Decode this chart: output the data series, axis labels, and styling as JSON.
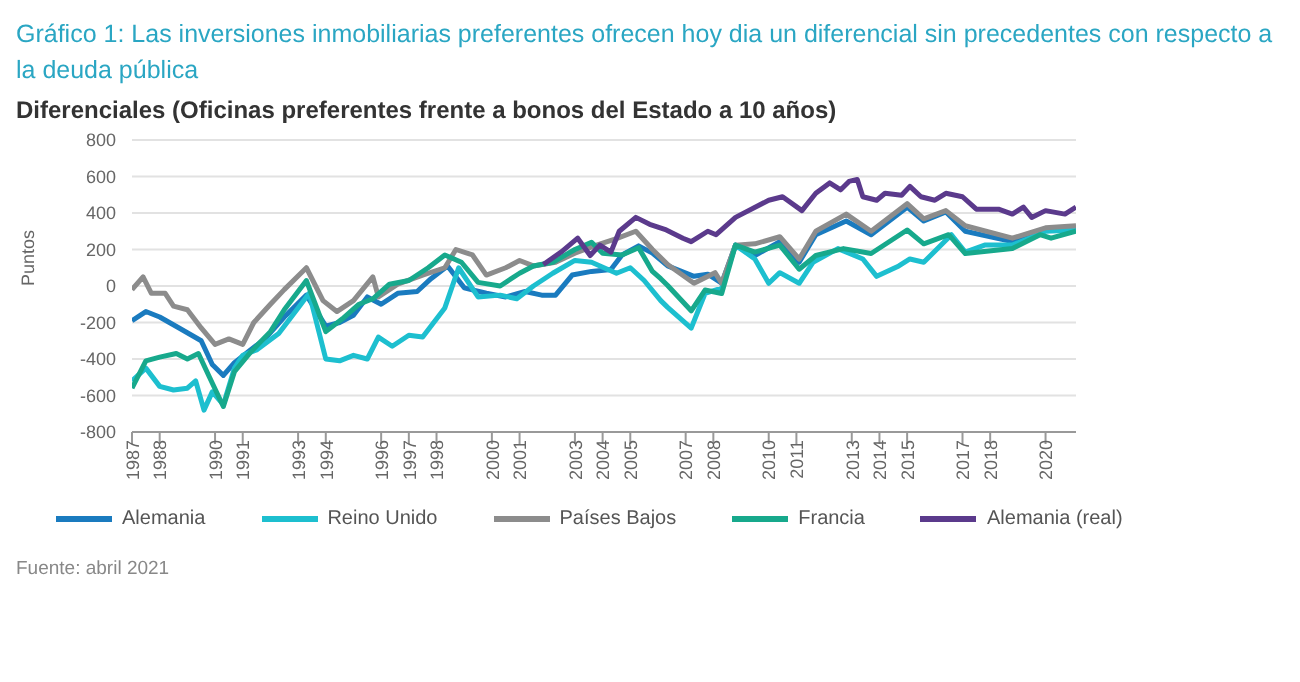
{
  "chart_data": {
    "type": "line",
    "title": "Gráfico 1: Las inversiones inmobiliarias preferentes ofrecen hoy dia un diferencial sin precedentes con respecto a la deuda pública",
    "subtitle": "Diferenciales (Oficinas preferentes frente a bonos del Estado a 10 años)",
    "ylabel": "Puntos",
    "annotations": [
      "Fuente: abril 2021"
    ],
    "xlim": [
      1987,
      2021.1
    ],
    "ylim": [
      -800,
      800
    ],
    "yticks": [
      -800,
      -600,
      -400,
      -200,
      0,
      200,
      400,
      600,
      800
    ],
    "xticks": [
      1987,
      1988,
      1990,
      1991,
      1993,
      1994,
      1996,
      1997,
      1998,
      2000,
      2001,
      2003,
      2004,
      2005,
      2007,
      2008,
      2010,
      2011,
      2013,
      2014,
      2015,
      2017,
      2018,
      2020
    ],
    "grid": "y",
    "legend": "bottom",
    "marker": "none",
    "line_style": "solid",
    "series": [
      {
        "name": "Alemania",
        "color": "#1a7bbf",
        "x": [
          1987,
          1987.5,
          1988,
          1988.7,
          1989.5,
          1989.9,
          1990.3,
          1990.7,
          1991.2,
          1991.8,
          1992.5,
          1993.3,
          1994,
          1994.5,
          1995,
          1995.5,
          1996,
          1996.6,
          1997.3,
          1997.8,
          1998.4,
          1999,
          1999.8,
          2000.5,
          2001.2,
          2001.8,
          2002.3,
          2002.9,
          2003.6,
          2004.3,
          2004.7,
          2005.3,
          2005.8,
          2006.35,
          2007.3,
          2007.8,
          2008.3,
          2008.8,
          2009.5,
          2010.4,
          2011.1,
          2011.7,
          2012.8,
          2013.7,
          2015,
          2015.6,
          2016.4,
          2017.1,
          2018.8,
          2020,
          2021.1
        ],
        "values": [
          -190,
          -140,
          -170,
          -230,
          -300,
          -430,
          -490,
          -420,
          -360,
          -290,
          -170,
          -50,
          -220,
          -200,
          -160,
          -60,
          -100,
          -40,
          -30,
          40,
          110,
          -10,
          -40,
          -60,
          -30,
          -50,
          -50,
          60,
          80,
          90,
          170,
          220,
          180,
          110,
          53,
          65,
          15,
          224,
          167,
          243,
          130,
          281,
          356,
          281,
          432,
          356,
          406,
          300,
          243,
          307,
          319
        ]
      },
      {
        "name": "Reino Unido",
        "color": "#1dbfcf",
        "x": [
          1987,
          1987.5,
          1988,
          1988.5,
          1989,
          1989.3,
          1989.6,
          1989.9,
          1990.3,
          1990.7,
          1991,
          1991.5,
          1992.3,
          1993,
          1993.4,
          1994,
          1994.5,
          1995,
          1995.5,
          1995.9,
          1996.4,
          1997,
          1997.5,
          1998.3,
          1998.8,
          1999.5,
          2000.3,
          2000.9,
          2001.5,
          2002.2,
          2003,
          2003.6,
          2004.5,
          2005,
          2005.5,
          2006.1,
          2006.35,
          2007.2,
          2007.7,
          2008.3,
          2008.8,
          2009.5,
          2010,
          2010.4,
          2011.1,
          2011.6,
          2012.5,
          2013.4,
          2013.9,
          2014.7,
          2015.1,
          2015.6,
          2016.6,
          2017.1,
          2017.8,
          2018.8,
          2020,
          2021.1
        ],
        "values": [
          -520,
          -450,
          -550,
          -570,
          -560,
          -520,
          -680,
          -580,
          -650,
          -450,
          -380,
          -350,
          -260,
          -120,
          -40,
          -400,
          -410,
          -380,
          -400,
          -280,
          -330,
          -270,
          -280,
          -120,
          100,
          -60,
          -50,
          -70,
          0,
          70,
          140,
          130,
          70,
          100,
          30,
          -80,
          -117,
          -231,
          -41,
          -11,
          224,
          148,
          15,
          73,
          15,
          130,
          205,
          148,
          53,
          110,
          148,
          130,
          281,
          186,
          224,
          224,
          300,
          307
        ]
      },
      {
        "name": "Países Bajos",
        "color": "#8c8c8c",
        "x": [
          1987,
          1987.4,
          1987.7,
          1988.2,
          1988.5,
          1989,
          1989.5,
          1990,
          1990.5,
          1991,
          1991.4,
          1992,
          1992.5,
          1993.3,
          1993.9,
          1994.4,
          1995,
          1995.7,
          1995.9,
          1996.6,
          1997.5,
          1998.3,
          1998.7,
          1999.3,
          1999.8,
          2000.5,
          2001,
          2001.5,
          2002.3,
          2003,
          2003.7,
          2004.5,
          2005.2,
          2005.8,
          2006.35,
          2007.3,
          2008.06,
          2008.3,
          2008.8,
          2009.5,
          2010.4,
          2011.1,
          2011.7,
          2012.8,
          2013.7,
          2015,
          2015.6,
          2016.4,
          2017.1,
          2018.8,
          2020,
          2021.1
        ],
        "values": [
          -20,
          50,
          -40,
          -40,
          -110,
          -130,
          -230,
          -320,
          -290,
          -320,
          -200,
          -100,
          -20,
          100,
          -80,
          -140,
          -80,
          50,
          -60,
          10,
          60,
          100,
          200,
          170,
          60,
          100,
          140,
          110,
          130,
          180,
          220,
          260,
          300,
          200,
          118,
          15,
          73,
          15,
          224,
          231,
          270,
          148,
          300,
          394,
          300,
          451,
          368,
          413,
          330,
          262,
          319,
          330
        ]
      },
      {
        "name": "Francia",
        "color": "#17a98c",
        "x": [
          1987,
          1987.5,
          1988,
          1988.6,
          1989,
          1989.4,
          1989.8,
          1990.3,
          1990.7,
          1991.3,
          1992,
          1992.5,
          1993.3,
          1994,
          1994.6,
          1995.2,
          1995.7,
          1996.3,
          1997,
          1997.7,
          1998.3,
          1998.9,
          1999.5,
          2000.3,
          2001,
          2001.5,
          2002.2,
          2003,
          2003.6,
          2004,
          2004.7,
          2005.3,
          2005.8,
          2006.1,
          2006.35,
          2007.2,
          2007.7,
          2008.3,
          2008.8,
          2009.5,
          2010.4,
          2011.1,
          2011.7,
          2012.7,
          2013.7,
          2015,
          2015.6,
          2016.5,
          2017.1,
          2018.8,
          2019.8,
          2020.2,
          2021.1
        ],
        "values": [
          -560,
          -410,
          -390,
          -370,
          -400,
          -370,
          -500,
          -660,
          -470,
          -360,
          -250,
          -130,
          30,
          -250,
          -180,
          -100,
          -70,
          10,
          30,
          100,
          170,
          130,
          20,
          0,
          70,
          110,
          130,
          200,
          240,
          180,
          170,
          210,
          80,
          40,
          3,
          -136,
          -22,
          -41,
          224,
          186,
          224,
          92,
          167,
          205,
          178,
          307,
          231,
          281,
          178,
          205,
          281,
          262,
          300
        ]
      },
      {
        "name": "Alemania (real)",
        "color": "#5b3a8c",
        "x": [
          2001.86,
          2002.5,
          2003.1,
          2003.55,
          2003.9,
          2004.3,
          2004.6,
          2005.2,
          2005.7,
          2006.3,
          2006.9,
          2007.2,
          2007.8,
          2008.1,
          2008.8,
          2010,
          2010.5,
          2011.2,
          2011.7,
          2012.2,
          2012.6,
          2012.9,
          2013.2,
          2013.4,
          2013.9,
          2014.2,
          2014.8,
          2015.1,
          2015.5,
          2016,
          2016.4,
          2017,
          2017.5,
          2018.3,
          2018.8,
          2019.2,
          2019.5,
          2020,
          2020.7,
          2021.1
        ],
        "values": [
          118,
          186,
          262,
          167,
          224,
          186,
          300,
          376,
          338,
          307,
          262,
          243,
          300,
          281,
          376,
          470,
          489,
          413,
          508,
          565,
          527,
          573,
          584,
          489,
          470,
          508,
          497,
          546,
          489,
          470,
          508,
          489,
          421,
          421,
          394,
          432,
          376,
          413,
          394,
          432
        ]
      }
    ]
  }
}
